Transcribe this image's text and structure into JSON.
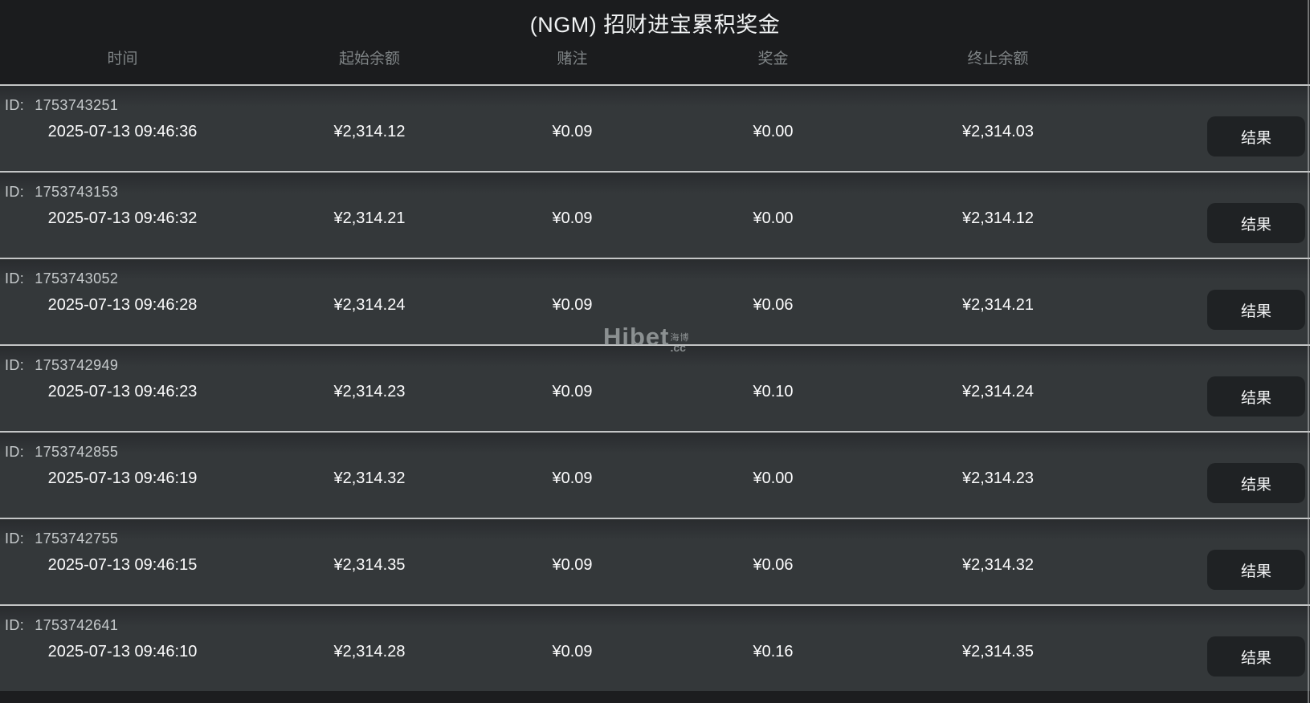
{
  "page": {
    "title": "(NGM) 招财进宝累积奖金"
  },
  "table": {
    "headers": {
      "time": "时间",
      "start_balance": "起始余额",
      "bet": "赌注",
      "prize": "奖金",
      "end_balance": "终止余额"
    },
    "id_prefix": "ID:",
    "result_button_label": "结果",
    "rows": [
      {
        "id": "1753743251",
        "time": "2025-07-13 09:46:36",
        "start_balance": "¥2,314.12",
        "bet": "¥0.09",
        "prize": "¥0.00",
        "end_balance": "¥2,314.03"
      },
      {
        "id": "1753743153",
        "time": "2025-07-13 09:46:32",
        "start_balance": "¥2,314.21",
        "bet": "¥0.09",
        "prize": "¥0.00",
        "end_balance": "¥2,314.12"
      },
      {
        "id": "1753743052",
        "time": "2025-07-13 09:46:28",
        "start_balance": "¥2,314.24",
        "bet": "¥0.09",
        "prize": "¥0.06",
        "end_balance": "¥2,314.21"
      },
      {
        "id": "1753742949",
        "time": "2025-07-13 09:46:23",
        "start_balance": "¥2,314.23",
        "bet": "¥0.09",
        "prize": "¥0.10",
        "end_balance": "¥2,314.24"
      },
      {
        "id": "1753742855",
        "time": "2025-07-13 09:46:19",
        "start_balance": "¥2,314.32",
        "bet": "¥0.09",
        "prize": "¥0.00",
        "end_balance": "¥2,314.23"
      },
      {
        "id": "1753742755",
        "time": "2025-07-13 09:46:15",
        "start_balance": "¥2,314.35",
        "bet": "¥0.09",
        "prize": "¥0.06",
        "end_balance": "¥2,314.32"
      },
      {
        "id": "1753742641",
        "time": "2025-07-13 09:46:10",
        "start_balance": "¥2,314.28",
        "bet": "¥0.09",
        "prize": "¥0.16",
        "end_balance": "¥2,314.35"
      }
    ]
  },
  "watermark": {
    "brand": "Hibet",
    "cn": "海博",
    "suffix": ".cc"
  },
  "colors": {
    "page_bg": "#1c1d1f",
    "row_bg": "#34383a",
    "row_top_shade": "#292c2e",
    "separator": "#c4c6c6",
    "button_bg": "#1f2224",
    "header_label": "#7f8486",
    "id_text": "#c7cbcd",
    "value_text": "#fdfdfe",
    "title_text": "#f0f2f3"
  }
}
